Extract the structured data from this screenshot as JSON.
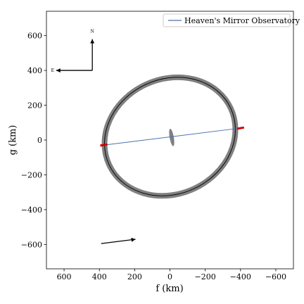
{
  "chart_data": {
    "type": "scatter",
    "xlabel": "f (km)",
    "ylabel": "g (km)",
    "xlim": [
      700,
      -700
    ],
    "ylim": [
      -740,
      740
    ],
    "x_ticks": [
      600,
      400,
      200,
      0,
      -200,
      -400,
      -600
    ],
    "x_tick_labels": [
      "600",
      "400",
      "200",
      "0",
      "−200",
      "−400",
      "−600"
    ],
    "y_ticks": [
      600,
      400,
      200,
      0,
      -200,
      -400,
      -600
    ],
    "y_tick_labels": [
      "600",
      "400",
      "200",
      "0",
      "−200",
      "−400",
      "−600"
    ],
    "grid": false,
    "legend_position": "top-right",
    "legend": [
      {
        "label": "Heaven's Mirror Observatory",
        "color": "#4c72b0"
      }
    ],
    "ellipse": {
      "center": [
        0,
        20
      ],
      "semi_major": 380,
      "semi_minor": 330,
      "rotation_deg": -25,
      "band_width_km": 32,
      "band_color": "#808080",
      "line_color": "#000000"
    },
    "inner_ellipse": {
      "center": [
        -10,
        15
      ],
      "semi_major": 50,
      "semi_minor": 12,
      "rotation_deg": 80,
      "color": "#808080"
    },
    "chord": {
      "name": "Heaven's Mirror Observatory",
      "points": [
        [
          380,
          -30
        ],
        [
          -410,
          70
        ]
      ],
      "color": "#4c72b0"
    },
    "chord_error_segments": [
      {
        "points": [
          [
            395,
            -32
          ],
          [
            355,
            -25
          ]
        ],
        "color": "#cc0000"
      },
      {
        "points": [
          [
            -380,
            65
          ],
          [
            -420,
            72
          ]
        ],
        "color": "#cc0000"
      }
    ],
    "compass": {
      "origin": [
        440,
        400
      ],
      "north_label": "N",
      "east_label": "E",
      "north_tip": [
        440,
        580
      ],
      "east_tip": [
        645,
        400
      ]
    },
    "motion_arrow": {
      "start": [
        390,
        -595
      ],
      "end": [
        195,
        -570
      ]
    }
  }
}
